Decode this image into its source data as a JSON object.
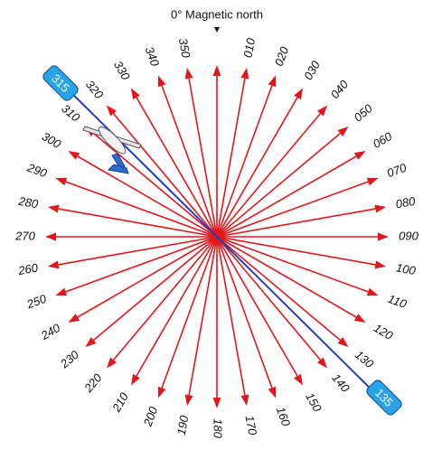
{
  "title": "0° Magnetic north",
  "radials": [
    "010",
    "020",
    "030",
    "040",
    "050",
    "060",
    "070",
    "080",
    "090",
    "100",
    "110",
    "120",
    "130",
    "140",
    "150",
    "160",
    "170",
    "180",
    "190",
    "200",
    "210",
    "220",
    "230",
    "240",
    "250",
    "260",
    "270",
    "280",
    "290",
    "300",
    "310",
    "320",
    "330",
    "340",
    "350"
  ],
  "course": {
    "from": "315",
    "to": "135"
  }
}
